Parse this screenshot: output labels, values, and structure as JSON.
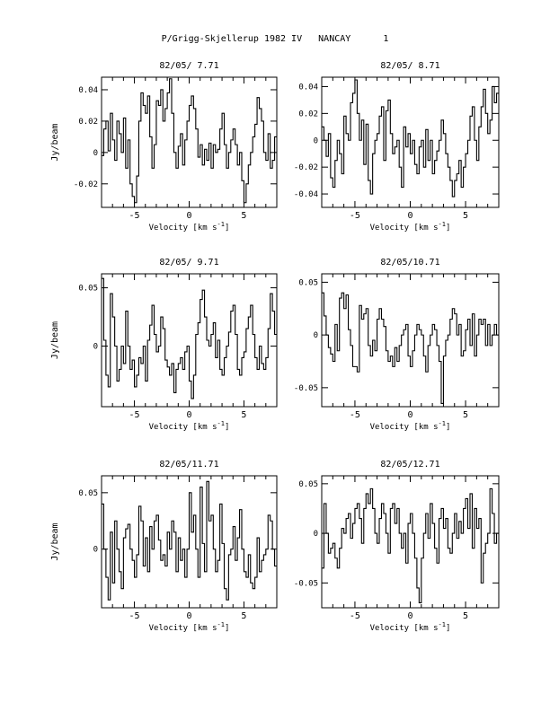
{
  "page": {
    "title": "P/Grigg-Skjellerup 1982 IV   NANCAY      1"
  },
  "chart_data": [
    {
      "type": "line",
      "title": "82/05/ 7.71",
      "xlabel": "Velocity [km s",
      "xlabel_superscript": "-1",
      "xlabel_close": "]",
      "ylabel": "Jy/beam",
      "xlim": [
        -8,
        8
      ],
      "ylim": [
        -0.035,
        0.048
      ],
      "xticks": [
        -5,
        0,
        5
      ],
      "yticks": [
        -0.02,
        0,
        0.02,
        0.04
      ],
      "ytick_labels": [
        "-0.02",
        "0",
        "0.02",
        "0.04"
      ],
      "x": [
        -8.0,
        -7.8,
        -7.6,
        -7.4,
        -7.2,
        -7.0,
        -6.8,
        -6.6,
        -6.4,
        -6.2,
        -6.0,
        -5.8,
        -5.6,
        -5.4,
        -5.2,
        -5.0,
        -4.8,
        -4.6,
        -4.4,
        -4.2,
        -4.0,
        -3.8,
        -3.6,
        -3.4,
        -3.2,
        -3.0,
        -2.8,
        -2.6,
        -2.4,
        -2.2,
        -2.0,
        -1.8,
        -1.6,
        -1.4,
        -1.2,
        -1.0,
        -0.8,
        -0.6,
        -0.4,
        -0.2,
        0.0,
        0.2,
        0.4,
        0.6,
        0.8,
        1.0,
        1.2,
        1.4,
        1.6,
        1.8,
        2.0,
        2.2,
        2.4,
        2.6,
        2.8,
        3.0,
        3.2,
        3.4,
        3.6,
        3.8,
        4.0,
        4.2,
        4.4,
        4.6,
        4.8,
        5.0,
        5.2,
        5.4,
        5.6,
        5.8,
        6.0,
        6.2,
        6.4,
        6.6,
        6.8,
        7.0,
        7.2,
        7.4,
        7.6,
        7.8
      ],
      "values": [
        -0.002,
        0.015,
        0.02,
        0.001,
        0.025,
        0.008,
        -0.005,
        0.02,
        0.012,
        0.0,
        0.022,
        -0.01,
        0.008,
        -0.02,
        -0.028,
        -0.032,
        -0.015,
        0.02,
        0.038,
        0.03,
        0.025,
        0.036,
        0.01,
        -0.01,
        0.005,
        0.033,
        0.03,
        0.04,
        0.02,
        0.028,
        0.038,
        0.047,
        0.025,
        0.0,
        -0.01,
        0.004,
        0.012,
        -0.008,
        0.008,
        0.02,
        0.03,
        0.036,
        0.028,
        0.015,
        -0.003,
        0.005,
        -0.008,
        0.002,
        -0.005,
        0.006,
        -0.01,
        0.005,
        0.0,
        0.002,
        0.015,
        0.025,
        0.005,
        -0.01,
        0.0,
        0.008,
        0.015,
        0.005,
        -0.008,
        0.0,
        -0.018,
        -0.032,
        -0.02,
        -0.008,
        0.0,
        0.01,
        0.018,
        0.035,
        0.028,
        0.02,
        0.0,
        -0.005,
        0.012,
        -0.01,
        -0.005,
        0.01
      ]
    },
    {
      "type": "line",
      "title": "82/05/ 8.71",
      "xlabel": "Velocity [km s",
      "xlabel_superscript": "-1",
      "xlabel_close": "]",
      "ylabel": "",
      "xlim": [
        -8,
        8
      ],
      "ylim": [
        -0.05,
        0.047
      ],
      "xticks": [
        -5,
        0,
        5
      ],
      "yticks": [
        -0.04,
        -0.02,
        0,
        0.02,
        0.04
      ],
      "ytick_labels": [
        "-0.04",
        "-0.02",
        "0",
        "0.02",
        "0.04"
      ],
      "x": [
        -8.0,
        -7.8,
        -7.6,
        -7.4,
        -7.2,
        -7.0,
        -6.8,
        -6.6,
        -6.4,
        -6.2,
        -6.0,
        -5.8,
        -5.6,
        -5.4,
        -5.2,
        -5.0,
        -4.8,
        -4.6,
        -4.4,
        -4.2,
        -4.0,
        -3.8,
        -3.6,
        -3.4,
        -3.2,
        -3.0,
        -2.8,
        -2.6,
        -2.4,
        -2.2,
        -2.0,
        -1.8,
        -1.6,
        -1.4,
        -1.2,
        -1.0,
        -0.8,
        -0.6,
        -0.4,
        -0.2,
        0.0,
        0.2,
        0.4,
        0.6,
        0.8,
        1.0,
        1.2,
        1.4,
        1.6,
        1.8,
        2.0,
        2.2,
        2.4,
        2.6,
        2.8,
        3.0,
        3.2,
        3.4,
        3.6,
        3.8,
        4.0,
        4.2,
        4.4,
        4.6,
        4.8,
        5.0,
        5.2,
        5.4,
        5.6,
        5.8,
        6.0,
        6.2,
        6.4,
        6.6,
        6.8,
        7.0,
        7.2,
        7.4,
        7.6,
        7.8
      ],
      "values": [
        0.01,
        0.0,
        -0.012,
        0.005,
        -0.028,
        -0.035,
        -0.015,
        0.0,
        -0.01,
        -0.025,
        0.018,
        0.005,
        0.0,
        0.028,
        0.035,
        0.045,
        0.02,
        0.0,
        0.015,
        -0.018,
        0.012,
        -0.03,
        -0.04,
        -0.01,
        0.0,
        0.005,
        0.018,
        0.025,
        -0.015,
        0.022,
        0.03,
        0.005,
        -0.01,
        -0.005,
        0.0,
        -0.02,
        -0.035,
        0.01,
        -0.005,
        0.005,
        -0.01,
        0.0,
        -0.018,
        -0.025,
        -0.005,
        0.0,
        -0.02,
        0.008,
        -0.015,
        0.0,
        -0.025,
        -0.015,
        -0.008,
        0.0,
        0.015,
        0.005,
        -0.01,
        -0.02,
        -0.03,
        -0.042,
        -0.03,
        -0.025,
        -0.015,
        -0.035,
        -0.02,
        -0.01,
        0.0,
        0.018,
        0.025,
        0.0,
        -0.015,
        0.01,
        0.025,
        0.038,
        0.02,
        0.005,
        0.015,
        0.04,
        0.028,
        0.035
      ]
    },
    {
      "type": "line",
      "title": "82/05/ 9.71",
      "xlabel": "Velocity [km s",
      "xlabel_superscript": "-1",
      "xlabel_close": "]",
      "ylabel": "Jy/beam",
      "xlim": [
        -8,
        8
      ],
      "ylim": [
        -0.052,
        0.062
      ],
      "xticks": [
        -5,
        0,
        5
      ],
      "yticks": [
        0,
        0.05
      ],
      "ytick_labels": [
        "0",
        "0.05"
      ],
      "x": [
        -8.0,
        -7.8,
        -7.6,
        -7.4,
        -7.2,
        -7.0,
        -6.8,
        -6.6,
        -6.4,
        -6.2,
        -6.0,
        -5.8,
        -5.6,
        -5.4,
        -5.2,
        -5.0,
        -4.8,
        -4.6,
        -4.4,
        -4.2,
        -4.0,
        -3.8,
        -3.6,
        -3.4,
        -3.2,
        -3.0,
        -2.8,
        -2.6,
        -2.4,
        -2.2,
        -2.0,
        -1.8,
        -1.6,
        -1.4,
        -1.2,
        -1.0,
        -0.8,
        -0.6,
        -0.4,
        -0.2,
        0.0,
        0.2,
        0.4,
        0.6,
        0.8,
        1.0,
        1.2,
        1.4,
        1.6,
        1.8,
        2.0,
        2.2,
        2.4,
        2.6,
        2.8,
        3.0,
        3.2,
        3.4,
        3.6,
        3.8,
        4.0,
        4.2,
        4.4,
        4.6,
        4.8,
        5.0,
        5.2,
        5.4,
        5.6,
        5.8,
        6.0,
        6.2,
        6.4,
        6.6,
        6.8,
        7.0,
        7.2,
        7.4,
        7.6,
        7.8
      ],
      "values": [
        0.058,
        0.005,
        -0.025,
        -0.035,
        0.045,
        0.025,
        0.0,
        -0.03,
        -0.02,
        0.0,
        -0.015,
        0.03,
        0.0,
        -0.02,
        -0.012,
        -0.035,
        -0.025,
        -0.01,
        -0.015,
        0.0,
        -0.03,
        0.005,
        0.018,
        0.035,
        0.01,
        -0.005,
        0.0,
        0.025,
        0.015,
        -0.012,
        -0.018,
        -0.025,
        -0.015,
        -0.04,
        -0.02,
        -0.015,
        -0.01,
        -0.02,
        -0.005,
        0.0,
        -0.03,
        -0.045,
        -0.025,
        0.01,
        0.02,
        0.04,
        0.048,
        0.025,
        0.005,
        0.0,
        0.01,
        0.02,
        -0.01,
        0.005,
        -0.02,
        -0.025,
        -0.01,
        0.0,
        0.012,
        0.03,
        0.035,
        0.01,
        -0.02,
        -0.025,
        -0.01,
        -0.005,
        0.015,
        0.025,
        0.035,
        0.01,
        -0.01,
        -0.02,
        0.0,
        -0.015,
        -0.02,
        -0.01,
        0.015,
        0.045,
        0.03,
        0.01
      ]
    },
    {
      "type": "line",
      "title": "82/05/10.71",
      "xlabel": "Velocity [km s",
      "xlabel_superscript": "-1",
      "xlabel_close": "]",
      "ylabel": "",
      "xlim": [
        -8,
        8
      ],
      "ylim": [
        -0.068,
        0.058
      ],
      "xticks": [
        -5,
        0,
        5
      ],
      "yticks": [
        -0.05,
        0,
        0.05
      ],
      "ytick_labels": [
        "-0.05",
        "0",
        "0.05"
      ],
      "x": [
        -8.0,
        -7.8,
        -7.6,
        -7.4,
        -7.2,
        -7.0,
        -6.8,
        -6.6,
        -6.4,
        -6.2,
        -6.0,
        -5.8,
        -5.6,
        -5.4,
        -5.2,
        -5.0,
        -4.8,
        -4.6,
        -4.4,
        -4.2,
        -4.0,
        -3.8,
        -3.6,
        -3.4,
        -3.2,
        -3.0,
        -2.8,
        -2.6,
        -2.4,
        -2.2,
        -2.0,
        -1.8,
        -1.6,
        -1.4,
        -1.2,
        -1.0,
        -0.8,
        -0.6,
        -0.4,
        -0.2,
        0.0,
        0.2,
        0.4,
        0.6,
        0.8,
        1.0,
        1.2,
        1.4,
        1.6,
        1.8,
        2.0,
        2.2,
        2.4,
        2.6,
        2.8,
        3.0,
        3.2,
        3.4,
        3.6,
        3.8,
        4.0,
        4.2,
        4.4,
        4.6,
        4.8,
        5.0,
        5.2,
        5.4,
        5.6,
        5.8,
        6.0,
        6.2,
        6.4,
        6.6,
        6.8,
        7.0,
        7.2,
        7.4,
        7.6,
        7.8
      ],
      "values": [
        0.04,
        0.018,
        0.0,
        -0.012,
        -0.018,
        -0.025,
        0.01,
        -0.015,
        0.035,
        0.04,
        0.025,
        0.038,
        0.005,
        -0.01,
        -0.03,
        -0.03,
        -0.035,
        0.028,
        0.015,
        0.02,
        0.025,
        -0.01,
        -0.02,
        -0.005,
        -0.015,
        0.015,
        0.025,
        0.015,
        0.008,
        -0.015,
        -0.025,
        -0.02,
        -0.03,
        -0.012,
        -0.025,
        -0.01,
        0.0,
        0.005,
        0.01,
        -0.02,
        -0.03,
        -0.015,
        0.0,
        0.01,
        0.005,
        0.0,
        -0.02,
        -0.035,
        -0.01,
        0.0,
        0.01,
        0.005,
        -0.01,
        -0.025,
        -0.065,
        -0.02,
        -0.005,
        0.0,
        0.015,
        0.025,
        0.02,
        0.0,
        0.01,
        -0.02,
        -0.015,
        0.005,
        0.015,
        -0.01,
        0.02,
        -0.02,
        0.0,
        0.015,
        0.01,
        0.015,
        -0.01,
        0.01,
        -0.01,
        0.0,
        0.01,
        0.0
      ]
    },
    {
      "type": "line",
      "title": "82/05/11.71",
      "xlabel": "Velocity [km s",
      "xlabel_superscript": "-1",
      "xlabel_close": "]",
      "ylabel": "Jy/beam",
      "xlim": [
        -8,
        8
      ],
      "ylim": [
        -0.052,
        0.065
      ],
      "xticks": [
        -5,
        0,
        5
      ],
      "yticks": [
        0,
        0.05
      ],
      "ytick_labels": [
        "0",
        "0.05"
      ],
      "x": [
        -8.0,
        -7.8,
        -7.6,
        -7.4,
        -7.2,
        -7.0,
        -6.8,
        -6.6,
        -6.4,
        -6.2,
        -6.0,
        -5.8,
        -5.6,
        -5.4,
        -5.2,
        -5.0,
        -4.8,
        -4.6,
        -4.4,
        -4.2,
        -4.0,
        -3.8,
        -3.6,
        -3.4,
        -3.2,
        -3.0,
        -2.8,
        -2.6,
        -2.4,
        -2.2,
        -2.0,
        -1.8,
        -1.6,
        -1.4,
        -1.2,
        -1.0,
        -0.8,
        -0.6,
        -0.4,
        -0.2,
        0.0,
        0.2,
        0.4,
        0.6,
        0.8,
        1.0,
        1.2,
        1.4,
        1.6,
        1.8,
        2.0,
        2.2,
        2.4,
        2.6,
        2.8,
        3.0,
        3.2,
        3.4,
        3.6,
        3.8,
        4.0,
        4.2,
        4.4,
        4.6,
        4.8,
        5.0,
        5.2,
        5.4,
        5.6,
        5.8,
        6.0,
        6.2,
        6.4,
        6.6,
        6.8,
        7.0,
        7.2,
        7.4,
        7.6,
        7.8
      ],
      "values": [
        0.04,
        0.0,
        -0.025,
        -0.045,
        0.015,
        -0.03,
        0.025,
        0.0,
        -0.02,
        -0.035,
        0.01,
        0.018,
        0.022,
        0.0,
        -0.01,
        -0.025,
        -0.005,
        0.038,
        0.025,
        -0.015,
        0.01,
        -0.02,
        0.02,
        0.0,
        0.025,
        0.03,
        0.008,
        -0.01,
        -0.005,
        -0.015,
        0.015,
        0.0,
        0.025,
        0.015,
        -0.02,
        0.01,
        -0.01,
        0.0,
        -0.025,
        0.0,
        0.05,
        0.015,
        0.03,
        0.0,
        -0.025,
        0.055,
        0.005,
        -0.02,
        0.06,
        0.025,
        0.03,
        0.0,
        -0.02,
        -0.01,
        0.04,
        0.005,
        -0.035,
        -0.045,
        -0.005,
        0.0,
        0.02,
        -0.01,
        0.01,
        0.035,
        0.0,
        -0.02,
        -0.025,
        -0.005,
        -0.03,
        -0.035,
        -0.025,
        0.01,
        -0.02,
        -0.01,
        -0.005,
        0.0,
        0.03,
        0.025,
        0.0,
        -0.015
      ]
    },
    {
      "type": "line",
      "title": "82/05/12.71",
      "xlabel": "Velocity [km s",
      "xlabel_superscript": "-1",
      "xlabel_close": "]",
      "ylabel": "",
      "xlim": [
        -8,
        8
      ],
      "ylim": [
        -0.075,
        0.058
      ],
      "xticks": [
        -5,
        0,
        5
      ],
      "yticks": [
        -0.05,
        0,
        0.05
      ],
      "ytick_labels": [
        "-0.05",
        "0",
        "0.05"
      ],
      "x": [
        -8.0,
        -7.8,
        -7.6,
        -7.4,
        -7.2,
        -7.0,
        -6.8,
        -6.6,
        -6.4,
        -6.2,
        -6.0,
        -5.8,
        -5.6,
        -5.4,
        -5.2,
        -5.0,
        -4.8,
        -4.6,
        -4.4,
        -4.2,
        -4.0,
        -3.8,
        -3.6,
        -3.4,
        -3.2,
        -3.0,
        -2.8,
        -2.6,
        -2.4,
        -2.2,
        -2.0,
        -1.8,
        -1.6,
        -1.4,
        -1.2,
        -1.0,
        -0.8,
        -0.6,
        -0.4,
        -0.2,
        0.0,
        0.2,
        0.4,
        0.6,
        0.8,
        1.0,
        1.2,
        1.4,
        1.6,
        1.8,
        2.0,
        2.2,
        2.4,
        2.6,
        2.8,
        3.0,
        3.2,
        3.4,
        3.6,
        3.8,
        4.0,
        4.2,
        4.4,
        4.6,
        4.8,
        5.0,
        5.2,
        5.4,
        5.6,
        5.8,
        6.0,
        6.2,
        6.4,
        6.6,
        6.8,
        7.0,
        7.2,
        7.4,
        7.6,
        7.8
      ],
      "values": [
        -0.035,
        0.03,
        0.0,
        -0.02,
        -0.015,
        -0.01,
        -0.025,
        -0.035,
        -0.015,
        0.005,
        0.0,
        0.015,
        0.02,
        -0.005,
        0.01,
        0.025,
        0.03,
        0.015,
        -0.01,
        0.025,
        0.04,
        0.03,
        0.045,
        0.025,
        0.0,
        -0.01,
        0.015,
        0.03,
        0.02,
        0.0,
        -0.02,
        0.025,
        0.03,
        0.01,
        0.025,
        0.0,
        -0.015,
        0.0,
        -0.03,
        0.01,
        0.02,
        0.0,
        -0.025,
        -0.055,
        -0.07,
        -0.025,
        0.0,
        0.02,
        -0.005,
        0.03,
        0.01,
        -0.015,
        -0.03,
        0.015,
        0.025,
        0.005,
        0.015,
        -0.015,
        -0.02,
        0.0,
        0.02,
        -0.005,
        0.012,
        0.0,
        0.025,
        0.035,
        0.005,
        0.04,
        -0.015,
        0.025,
        0.005,
        0.015,
        -0.05,
        -0.02,
        -0.01,
        0.0,
        0.045,
        0.02,
        -0.01,
        0.0
      ]
    }
  ]
}
